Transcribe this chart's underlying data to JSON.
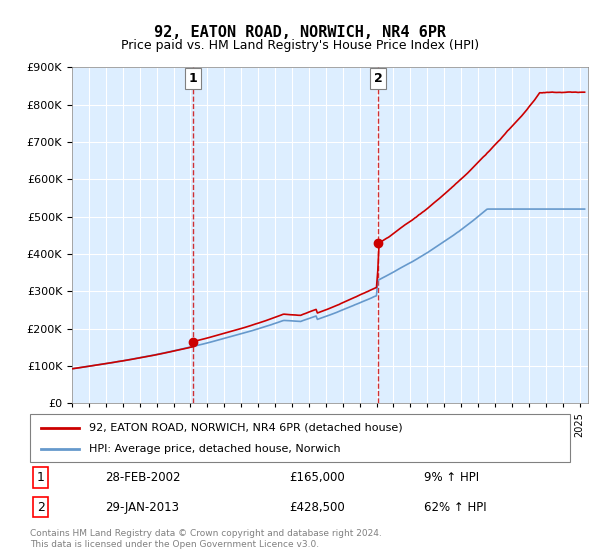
{
  "title": "92, EATON ROAD, NORWICH, NR4 6PR",
  "subtitle": "Price paid vs. HM Land Registry's House Price Index (HPI)",
  "ylabel_ticks": [
    "£0",
    "£100K",
    "£200K",
    "£300K",
    "£400K",
    "£500K",
    "£600K",
    "£700K",
    "£800K",
    "£900K"
  ],
  "ylim": [
    0,
    900000
  ],
  "xlim_start": 1995.0,
  "xlim_end": 2025.5,
  "sale1_x": 2002.16,
  "sale1_y": 165000,
  "sale2_x": 2013.08,
  "sale2_y": 428500,
  "sale1_label": "1",
  "sale2_label": "2",
  "sale1_date": "28-FEB-2002",
  "sale1_price": "£165,000",
  "sale1_hpi": "9% ↑ HPI",
  "sale2_date": "29-JAN-2013",
  "sale2_price": "£428,500",
  "sale2_hpi": "62% ↑ HPI",
  "legend_line1": "92, EATON ROAD, NORWICH, NR4 6PR (detached house)",
  "legend_line2": "HPI: Average price, detached house, Norwich",
  "footer": "Contains HM Land Registry data © Crown copyright and database right 2024.\nThis data is licensed under the Open Government Licence v3.0.",
  "line_color_red": "#cc0000",
  "line_color_blue": "#6699cc",
  "vline_color": "#cc0000",
  "background_color": "#ddeeff",
  "plot_bg": "#ddeeff"
}
